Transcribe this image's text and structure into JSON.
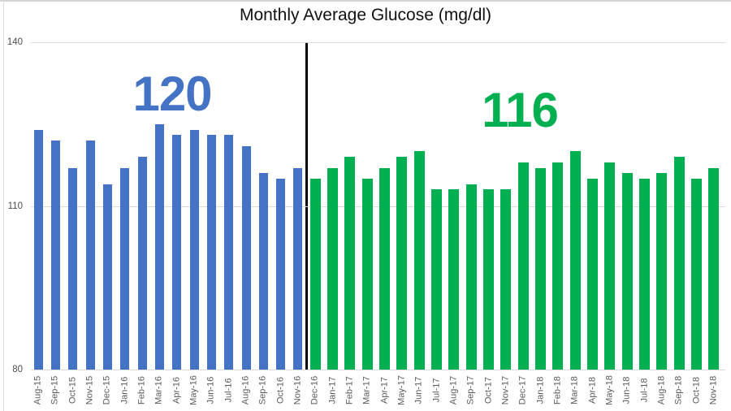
{
  "chart_data": {
    "type": "bar",
    "title": "Monthly Average Glucose (mg/dl)",
    "xlabel": "",
    "ylabel": "",
    "ylim": [
      80,
      140
    ],
    "yticks": [
      140,
      110,
      80
    ],
    "grid": true,
    "legend": "none",
    "divider": {
      "color": "#000000",
      "between": [
        "Nov-16",
        "Dec-16"
      ]
    },
    "categories": [
      "Aug-15",
      "Sep-15",
      "Oct-15",
      "Nov-15",
      "Dec-15",
      "Jan-16",
      "Feb-16",
      "Mar-16",
      "Apr-16",
      "May-16",
      "Jun-16",
      "Jul-16",
      "Aug-16",
      "Sep-16",
      "Oct-16",
      "Nov-16",
      "Dec-16",
      "Jan-17",
      "Feb-17",
      "Mar-17",
      "Apr-17",
      "May-17",
      "Jun-17",
      "Jul-17",
      "Aug-17",
      "Sep-17",
      "Oct-17",
      "Nov-17",
      "Dec-17",
      "Jan-18",
      "Feb-18",
      "Mar-18",
      "Apr-18",
      "May-18",
      "Jun-18",
      "Jul-18",
      "Aug-18",
      "Sep-18",
      "Oct-18",
      "Nov-18"
    ],
    "values": [
      124,
      122,
      117,
      122,
      114,
      117,
      119,
      125,
      123,
      124,
      123,
      123,
      121,
      116,
      115,
      117,
      115,
      117,
      119,
      115,
      117,
      119,
      120,
      113,
      113,
      114,
      113,
      113,
      118,
      117,
      118,
      120,
      115,
      118,
      116,
      115,
      116,
      119,
      115,
      117
    ],
    "groups": [
      {
        "name": "Aug-15 to Nov-16",
        "average_label": "120",
        "color": "#4472C4",
        "start": 0,
        "end": 15
      },
      {
        "name": "Dec-16 to Nov-18",
        "average_label": "116",
        "color": "#00B050",
        "start": 16,
        "end": 39
      }
    ]
  }
}
